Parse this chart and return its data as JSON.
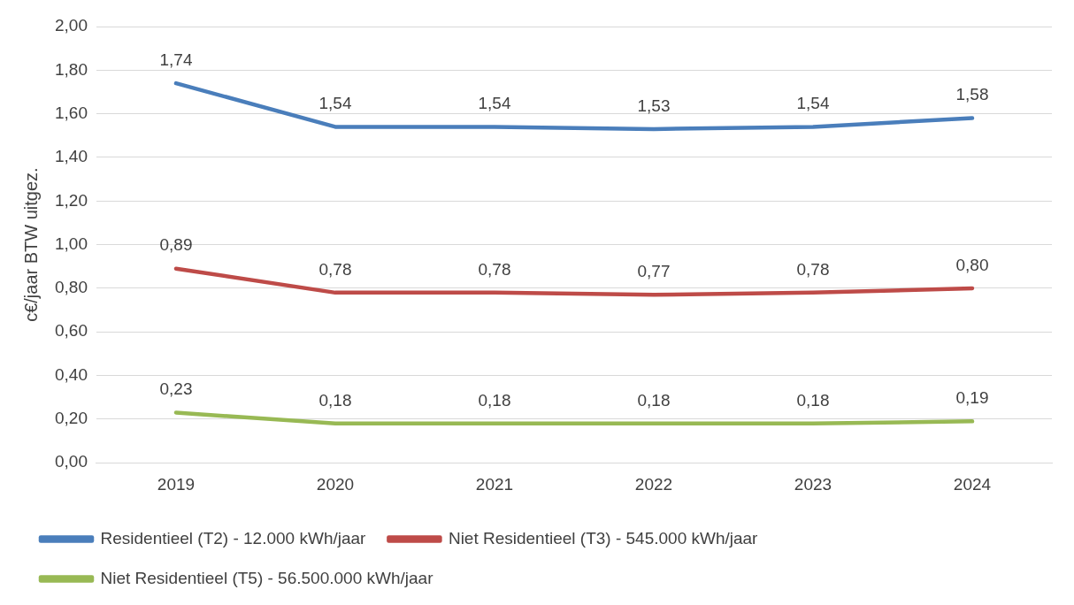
{
  "chart_data": {
    "type": "line",
    "ylabel": "c€/jaar BTW uitgez.",
    "categories": [
      "2019",
      "2020",
      "2021",
      "2022",
      "2023",
      "2024"
    ],
    "series": [
      {
        "name": "Residentieel (T2) - 12.000 kWh/jaar",
        "color": "#4a7ebb",
        "values": [
          1.74,
          1.54,
          1.54,
          1.53,
          1.54,
          1.58
        ],
        "value_labels": [
          "1,74",
          "1,54",
          "1,54",
          "1,53",
          "1,54",
          "1,58"
        ]
      },
      {
        "name": "Niet Residentieel (T3) - 545.000 kWh/jaar",
        "color": "#be4b48",
        "values": [
          0.89,
          0.78,
          0.78,
          0.77,
          0.78,
          0.8
        ],
        "value_labels": [
          "0,89",
          "0,78",
          "0,78",
          "0,77",
          "0,78",
          "0,80"
        ]
      },
      {
        "name": "Niet Residentieel (T5) - 56.500.000 kWh/jaar",
        "color": "#98b954",
        "values": [
          0.23,
          0.18,
          0.18,
          0.18,
          0.18,
          0.19
        ],
        "value_labels": [
          "0,23",
          "0,18",
          "0,18",
          "0,18",
          "0,18",
          "0,19"
        ]
      }
    ],
    "ylim": [
      0,
      2
    ],
    "yticks": [
      {
        "value": 0,
        "label": "0,00"
      },
      {
        "value": 0.2,
        "label": "0,20"
      },
      {
        "value": 0.4,
        "label": "0,40"
      },
      {
        "value": 0.6,
        "label": "0,60"
      },
      {
        "value": 0.8,
        "label": "0,80"
      },
      {
        "value": 1,
        "label": "1,00"
      },
      {
        "value": 1.2,
        "label": "1,20"
      },
      {
        "value": 1.4,
        "label": "1,40"
      },
      {
        "value": 1.6,
        "label": "1,60"
      },
      {
        "value": 1.8,
        "label": "1,80"
      },
      {
        "value": 2,
        "label": "2,00"
      }
    ],
    "grid": "y",
    "legend": "bottom",
    "marker": "none",
    "line_style": "solid"
  }
}
